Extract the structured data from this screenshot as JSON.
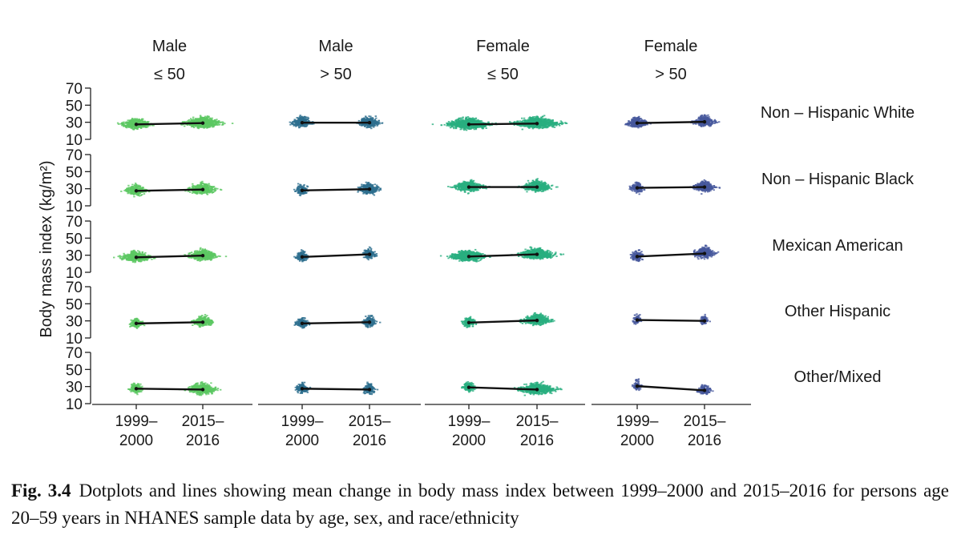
{
  "caption": {
    "label": "Fig. 3.4",
    "text": "Dotplots and lines showing mean change in body mass index between 1999–2000 and 2015–2016 for persons age 20–59 years in NHANES sample data by age, sex, and race/ethnicity"
  },
  "chart_data": {
    "type": "scatter",
    "subtype": "faceted dotplot with mean lines",
    "ylabel": "Body mass index (kg/m²)",
    "ylim": [
      10,
      70
    ],
    "yticks": [
      10,
      30,
      50,
      70
    ],
    "ytick_labels": [
      "10",
      "30",
      "50",
      "70"
    ],
    "x_categories": [
      {
        "line1": "1999–",
        "line2": "2000"
      },
      {
        "line1": "2015–",
        "line2": "2016"
      }
    ],
    "columns": [
      {
        "sex": "Male",
        "age": "≤ 50",
        "color": "#5cc863"
      },
      {
        "sex": "Male",
        "age": "> 50",
        "color": "#2e6f8e"
      },
      {
        "sex": "Female",
        "age": "≤ 50",
        "color": "#29af7f"
      },
      {
        "sex": "Female",
        "age": "> 50",
        "color": "#46589c"
      }
    ],
    "rows": [
      "Non – Hispanic White",
      "Non – Hispanic Black",
      "Mexican American",
      "Other Hispanic",
      "Other/Mixed"
    ],
    "means": [
      [
        [
          27.5,
          29.0
        ],
        [
          29.5,
          29.5
        ],
        [
          27.5,
          28.5
        ],
        [
          29.0,
          30.5
        ]
      ],
      [
        [
          27.5,
          29.0
        ],
        [
          28.0,
          29.5
        ],
        [
          32.0,
          32.0
        ],
        [
          31.0,
          32.0
        ]
      ],
      [
        [
          27.5,
          29.5
        ],
        [
          28.0,
          31.0
        ],
        [
          28.5,
          31.0
        ],
        [
          28.5,
          32.0
        ]
      ],
      [
        [
          27.0,
          28.5
        ],
        [
          27.0,
          28.5
        ],
        [
          28.0,
          30.5
        ],
        [
          31.0,
          30.0
        ]
      ],
      [
        [
          27.5,
          26.5
        ],
        [
          27.5,
          26.5
        ],
        [
          29.0,
          26.5
        ],
        [
          30.5,
          25.5
        ]
      ]
    ],
    "density": [
      [
        [
          3,
          4
        ],
        [
          2,
          2
        ],
        [
          5,
          5
        ],
        [
          2,
          2
        ]
      ],
      [
        [
          2,
          3
        ],
        [
          1,
          2
        ],
        [
          3,
          3
        ],
        [
          1,
          2
        ]
      ],
      [
        [
          3,
          3
        ],
        [
          1,
          1
        ],
        [
          4,
          4
        ],
        [
          1,
          2
        ]
      ],
      [
        [
          1,
          2
        ],
        [
          1,
          1
        ],
        [
          1,
          3
        ],
        [
          0.5,
          0.5
        ]
      ],
      [
        [
          1,
          3
        ],
        [
          1,
          1
        ],
        [
          1,
          4
        ],
        [
          0.5,
          1
        ]
      ]
    ],
    "grid": false,
    "legend": "none"
  }
}
